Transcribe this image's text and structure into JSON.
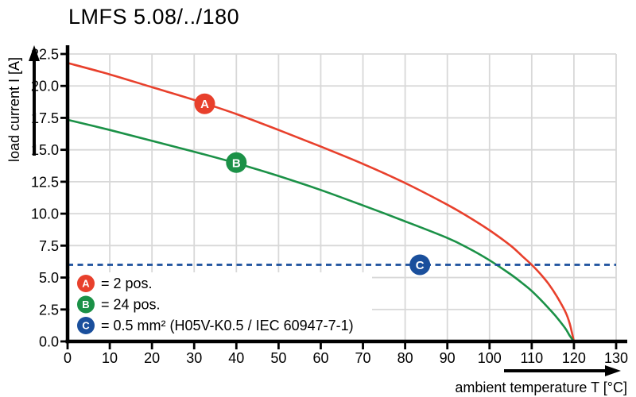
{
  "chart_data": {
    "type": "line",
    "title": "LMFS 5.08/../180",
    "xlabel": "ambient temperature T [°C]",
    "ylabel": "load current I [A]",
    "xlim": [
      0,
      130
    ],
    "ylim": [
      0,
      22.5
    ],
    "xticks": [
      0,
      10,
      20,
      30,
      40,
      50,
      60,
      70,
      80,
      90,
      100,
      110,
      120,
      130
    ],
    "yticks": [
      0.0,
      2.5,
      5.0,
      7.5,
      10.0,
      12.5,
      15.0,
      17.5,
      20.0,
      22.5
    ],
    "grid": true,
    "legend_position": "bottom-left-inside",
    "series": [
      {
        "id": "A",
        "name": "2 pos.",
        "color": "#e8402c",
        "style": "solid",
        "marker": {
          "label": "A",
          "T": 32.5,
          "I": 18.6
        },
        "points": [
          [
            0,
            21.8
          ],
          [
            10,
            20.9
          ],
          [
            20,
            19.9
          ],
          [
            30,
            18.9
          ],
          [
            40,
            17.8
          ],
          [
            50,
            16.55
          ],
          [
            60,
            15.25
          ],
          [
            70,
            13.9
          ],
          [
            80,
            12.4
          ],
          [
            90,
            10.7
          ],
          [
            95,
            9.75
          ],
          [
            100,
            8.7
          ],
          [
            105,
            7.5
          ],
          [
            108,
            6.6
          ],
          [
            110,
            6.0
          ],
          [
            112,
            5.3
          ],
          [
            114,
            4.5
          ],
          [
            116,
            3.5
          ],
          [
            118,
            2.3
          ],
          [
            119,
            1.4
          ],
          [
            120,
            0
          ]
        ]
      },
      {
        "id": "B",
        "name": "24 pos.",
        "color": "#1b9147",
        "style": "solid",
        "marker": {
          "label": "B",
          "T": 40,
          "I": 14.0
        },
        "points": [
          [
            0,
            17.35
          ],
          [
            10,
            16.55
          ],
          [
            20,
            15.7
          ],
          [
            30,
            14.85
          ],
          [
            40,
            13.95
          ],
          [
            50,
            12.95
          ],
          [
            60,
            11.85
          ],
          [
            70,
            10.65
          ],
          [
            80,
            9.4
          ],
          [
            90,
            8.1
          ],
          [
            95,
            7.3
          ],
          [
            100,
            6.35
          ],
          [
            105,
            5.25
          ],
          [
            108,
            4.5
          ],
          [
            110,
            3.95
          ],
          [
            112,
            3.3
          ],
          [
            114,
            2.6
          ],
          [
            116,
            1.85
          ],
          [
            118,
            1.0
          ],
          [
            119,
            0.45
          ],
          [
            120,
            0
          ]
        ]
      },
      {
        "id": "C",
        "name": "0.5 mm² (H05V-K0.5 / IEC 60947-7-1)",
        "color": "#1a4f9c",
        "style": "dashed",
        "const_y": 6.0,
        "marker": {
          "label": "C",
          "T": 83.5,
          "I": 6.0
        }
      }
    ],
    "legend": [
      {
        "symbol": "A",
        "color": "#e8402c",
        "text": "= 2 pos."
      },
      {
        "symbol": "B",
        "color": "#1b9147",
        "text": "= 24 pos."
      },
      {
        "symbol": "C",
        "color": "#1a4f9c",
        "text": "= 0.5 mm² (H05V-K0.5 / IEC 60947-7-1)"
      }
    ]
  },
  "colors": {
    "grid": "#d8d8d8",
    "axis": "#000000",
    "background": "#ffffff",
    "marker_text": "#ffffff"
  }
}
